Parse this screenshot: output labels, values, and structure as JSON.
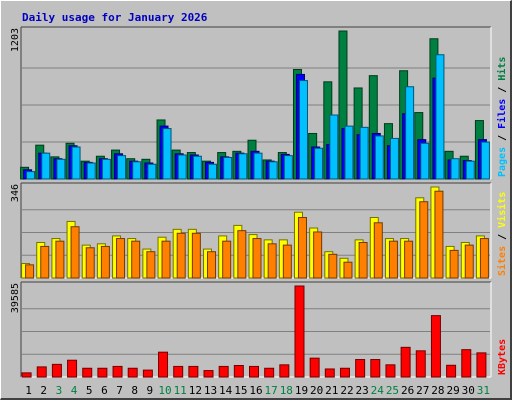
{
  "chart_data": {
    "type": "bar",
    "title": "Daily usage for January 2026",
    "categories": [
      "1",
      "2",
      "3",
      "4",
      "5",
      "6",
      "7",
      "8",
      "9",
      "10",
      "11",
      "12",
      "13",
      "14",
      "15",
      "16",
      "17",
      "18",
      "19",
      "20",
      "21",
      "22",
      "23",
      "24",
      "25",
      "26",
      "27",
      "28",
      "29",
      "30",
      "31"
    ],
    "weekend_days": [
      3,
      4,
      10,
      11,
      17,
      18,
      24,
      25,
      31
    ],
    "panels": {
      "hits": {
        "max_label": "1203",
        "ymax": 1203,
        "series": [
          {
            "name": "Hits",
            "color": "#008040",
            "values": [
              95,
              275,
              180,
              290,
              145,
              185,
              235,
              165,
              160,
              480,
              235,
              215,
              145,
              215,
              225,
              315,
              155,
              215,
              890,
              370,
              790,
              1203,
              740,
              840,
              450,
              880,
              540,
              1140,
              225,
              185,
              475
            ]
          },
          {
            "name": "Files",
            "color": "#0000ff",
            "values": [
              75,
              210,
              165,
              270,
              135,
              165,
              205,
              145,
              130,
              430,
              205,
              195,
              135,
              180,
              210,
              225,
              145,
              200,
              850,
              260,
              280,
              410,
              360,
              370,
              270,
              530,
              320,
              820,
              155,
              150,
              320
            ]
          },
          {
            "name": "Pages",
            "color": "#00c0ff",
            "values": [
              60,
              210,
              160,
              260,
              130,
              160,
              190,
              140,
              120,
              410,
              195,
              185,
              120,
              175,
              205,
              210,
              140,
              190,
              800,
              250,
              520,
              430,
              420,
              350,
              330,
              750,
              290,
              1010,
              165,
              145,
              300
            ]
          }
        ],
        "legend": [
          "Pages",
          "Files",
          "Hits"
        ],
        "legend_colors": [
          "#00c0ff",
          "#0000ff",
          "#008040"
        ]
      },
      "visits": {
        "max_label": "346",
        "ymax": 346,
        "series": [
          {
            "name": "Visits",
            "color": "#ffff00",
            "values": [
              55,
              135,
              150,
              215,
              125,
              130,
              160,
              150,
              110,
              155,
              185,
              185,
              110,
              160,
              200,
              165,
              145,
              145,
              250,
              190,
              100,
              75,
              145,
              230,
              150,
              150,
              305,
              346,
              120,
              135,
              160
            ]
          },
          {
            "name": "Sites",
            "color": "#ff8000",
            "values": [
              50,
              120,
              140,
              195,
              115,
              120,
              150,
              140,
              100,
              140,
              170,
              170,
              100,
              140,
              180,
              150,
              130,
              125,
              230,
              175,
              90,
              60,
              135,
              210,
              140,
              140,
              290,
              330,
              105,
              125,
              150
            ]
          }
        ],
        "legend": [
          "Sites",
          "Visits"
        ],
        "legend_colors": [
          "#ff8000",
          "#ffff00"
        ]
      },
      "kbytes": {
        "max_label": "39585",
        "ymax": 39585,
        "series": [
          {
            "name": "KBytes",
            "color": "#ff0000",
            "values": [
              1800,
              4400,
              5500,
              7300,
              3800,
              3800,
              4600,
              3800,
              3000,
              10800,
              4600,
              4600,
              2800,
              4600,
              5000,
              4600,
              3800,
              5300,
              39585,
              8200,
              3500,
              3800,
              7600,
              7600,
              5300,
              12900,
              11400,
              26700,
              5100,
              11900,
              10500
            ]
          }
        ],
        "legend": [
          "KBytes"
        ],
        "legend_colors": [
          "#ff0000"
        ]
      }
    }
  }
}
